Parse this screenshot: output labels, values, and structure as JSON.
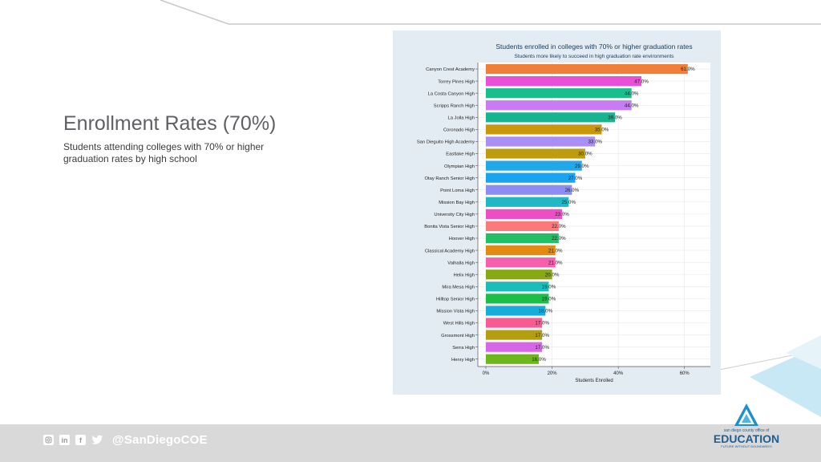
{
  "slide": {
    "title": "Enrollment Rates (70%)",
    "subtitle": "Students attending colleges with 70% or higher graduation rates by high school"
  },
  "footer": {
    "handle": "@SanDiegoCOE",
    "icons": [
      "instagram-icon",
      "linkedin-icon",
      "facebook-icon",
      "twitter-icon"
    ]
  },
  "logo": {
    "top_text": "san diego county office of",
    "main_text": "EDUCATION",
    "tagline": "FUTURE WITHOUT BOUNDARIES"
  },
  "chart_data": {
    "type": "bar",
    "orientation": "horizontal",
    "title": "Students enrolled in colleges with 70% or higher graduation rates",
    "subtitle": "Students more likely to succeed in high graduation rate environments",
    "xlabel": "Students Enrolled",
    "ylabel": "",
    "xlim": [
      0,
      62
    ],
    "xticks": [
      0,
      20,
      40,
      60
    ],
    "xtick_labels": [
      "0%",
      "20%",
      "40%",
      "60%"
    ],
    "grid": true,
    "legend": "none",
    "categories": [
      "Canyon Crest Academy",
      "Torrey Pines High",
      "La Costa Canyon High",
      "Scripps Ranch High",
      "La Jolla High",
      "Coronado High",
      "San Dieguito High Academy",
      "Eastlake High",
      "Olympian High",
      "Otay Ranch Senior High",
      "Point Loma High",
      "Mission Bay High",
      "University City High",
      "Bonita Vista Senior High",
      "Hoover High",
      "Classical Academy High",
      "Valhalla High",
      "Helix High",
      "Mira Mesa High",
      "Hilltop Senior High",
      "Mission Vista High",
      "West Hills High",
      "Grossmont High",
      "Serra High",
      "Henry High"
    ],
    "values": [
      61.0,
      47.0,
      44.0,
      44.0,
      39.0,
      35.0,
      33.0,
      30.0,
      29.0,
      27.0,
      26.0,
      25.0,
      23.0,
      22.0,
      22.0,
      21.0,
      21.0,
      20.0,
      19.0,
      19.0,
      18.0,
      17.0,
      17.0,
      17.0,
      16.0
    ],
    "value_labels": [
      "61.0%",
      "47.0%",
      "44.0%",
      "44.0%",
      "39.0%",
      "35.0%",
      "33.0%",
      "30.0%",
      "29.0%",
      "27.0%",
      "26.0%",
      "25.0%",
      "23.0%",
      "22.0%",
      "22.0%",
      "21.0%",
      "21.0%",
      "20.0%",
      "19.0%",
      "19.0%",
      "18.0%",
      "17.0%",
      "17.0%",
      "17.0%",
      "16.0%"
    ],
    "colors": [
      "#f07f3c",
      "#e94fd8",
      "#17bf8c",
      "#c77cf2",
      "#17b58f",
      "#c9980a",
      "#a98ef5",
      "#bf9c0f",
      "#22a7ea",
      "#1aa3ef",
      "#8c8cf5",
      "#22b7c6",
      "#ec4fc4",
      "#f87a7a",
      "#22bf66",
      "#e28a12",
      "#f65fae",
      "#88a814",
      "#1bbcb9",
      "#19bf47",
      "#18acd9",
      "#f85a94",
      "#b39e10",
      "#d765e8",
      "#6eb61e"
    ]
  }
}
